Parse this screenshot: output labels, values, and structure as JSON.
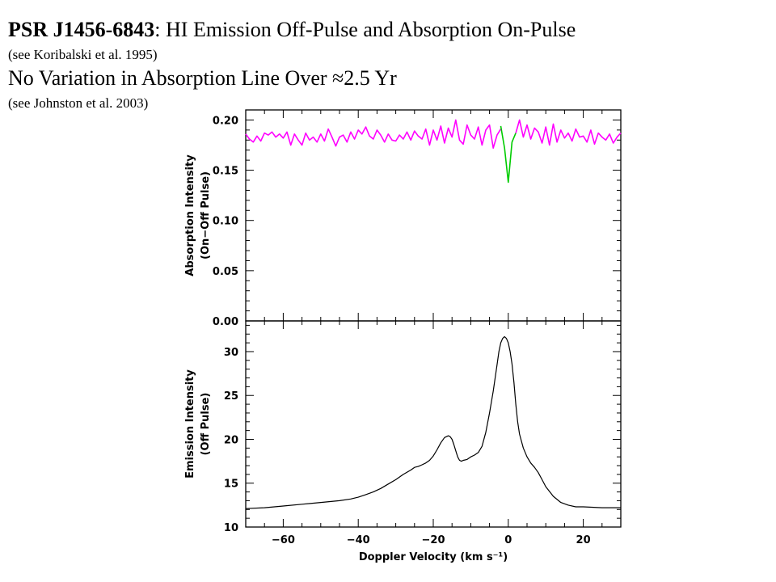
{
  "header": {
    "source": "PSR J1456-6843",
    "title_rest": ": HI Emission Off-Pulse and Absorption On-Pulse",
    "citation1": "(see Koribalski et al. 1995)",
    "subtitle": "No Variation in Absorption Line Over ≈2.5 Yr",
    "citation2": "(see Johnston et al. 2003)"
  },
  "chart_data": [
    {
      "type": "line",
      "panel": "top",
      "ylabel_line1": "Absorption Intensity",
      "ylabel_line2": "(On−Off Pulse)",
      "xlim": [
        -70,
        30
      ],
      "ylim": [
        0,
        0.21
      ],
      "yticks": [
        "0.00",
        "0.05",
        "0.10",
        "0.15",
        "0.20"
      ],
      "grid": false,
      "colors": {
        "magenta": "#ff00ff",
        "green": "#00cc00"
      },
      "series": [
        {
          "color": "magenta",
          "x": [
            -70,
            -69,
            -68,
            -67,
            -66,
            -65,
            -64,
            -63,
            -62,
            -61,
            -60,
            -59,
            -58,
            -57,
            -56,
            -55,
            -54,
            -53,
            -52,
            -51,
            -50,
            -49,
            -48,
            -47,
            -46,
            -45,
            -44,
            -43,
            -42,
            -41,
            -40,
            -39,
            -38,
            -37,
            -36,
            -35,
            -34,
            -33,
            -32,
            -31,
            -30,
            -29,
            -28,
            -27,
            -26,
            -25,
            -24,
            -23,
            -22,
            -21,
            -20,
            -19,
            -18,
            -17,
            -16,
            -15,
            -14,
            -13,
            -12,
            -11,
            -10,
            -9,
            -8,
            -7,
            -6,
            -5,
            -4,
            -3,
            -2
          ],
          "y": [
            0.186,
            0.181,
            0.178,
            0.184,
            0.179,
            0.187,
            0.185,
            0.188,
            0.183,
            0.186,
            0.182,
            0.188,
            0.175,
            0.186,
            0.18,
            0.175,
            0.187,
            0.18,
            0.183,
            0.178,
            0.186,
            0.179,
            0.191,
            0.183,
            0.174,
            0.183,
            0.185,
            0.178,
            0.188,
            0.181,
            0.19,
            0.186,
            0.193,
            0.184,
            0.181,
            0.19,
            0.185,
            0.178,
            0.186,
            0.18,
            0.179,
            0.185,
            0.181,
            0.188,
            0.18,
            0.189,
            0.184,
            0.181,
            0.191,
            0.175,
            0.19,
            0.18,
            0.194,
            0.177,
            0.192,
            0.183,
            0.2,
            0.18,
            0.176,
            0.195,
            0.185,
            0.181,
            0.193,
            0.175,
            0.19,
            0.195,
            0.172,
            0.185,
            0.191
          ]
        },
        {
          "color": "green",
          "x": [
            -2,
            -1,
            0,
            1,
            2
          ],
          "y": [
            0.194,
            0.172,
            0.138,
            0.178,
            0.187
          ]
        },
        {
          "color": "magenta",
          "x": [
            2,
            3,
            4,
            5,
            6,
            7,
            8,
            9,
            10,
            11,
            12,
            13,
            14,
            15,
            16,
            17,
            18,
            19,
            20,
            21,
            22,
            23,
            24,
            25,
            26,
            27,
            28,
            29,
            30
          ],
          "y": [
            0.187,
            0.2,
            0.183,
            0.195,
            0.181,
            0.192,
            0.188,
            0.177,
            0.193,
            0.175,
            0.196,
            0.178,
            0.19,
            0.182,
            0.187,
            0.179,
            0.191,
            0.183,
            0.184,
            0.178,
            0.19,
            0.176,
            0.187,
            0.183,
            0.18,
            0.186,
            0.177,
            0.183,
            0.187
          ]
        }
      ]
    },
    {
      "type": "line",
      "panel": "bottom",
      "xlabel": "Doppler Velocity (km s⁻¹)",
      "ylabel_line1": "Emission Intensity",
      "ylabel_line2": "(Off Pulse)",
      "xlim": [
        -70,
        30
      ],
      "ylim": [
        10,
        33.5
      ],
      "yticks": [
        "10",
        "15",
        "20",
        "25",
        "30"
      ],
      "xticks": [
        "−60",
        "−40",
        "−20",
        "0",
        "20"
      ],
      "grid": false,
      "colors": {
        "black": "#000000"
      },
      "series": [
        {
          "color": "black",
          "x": [
            -70,
            -65,
            -60,
            -55,
            -50,
            -45,
            -42,
            -40,
            -38,
            -36,
            -34,
            -32,
            -30,
            -28,
            -26,
            -25,
            -24,
            -23,
            -22,
            -21,
            -20,
            -19,
            -18,
            -17,
            -16,
            -15.5,
            -15,
            -14.5,
            -14,
            -13.5,
            -13,
            -12.5,
            -12,
            -11,
            -10,
            -9,
            -8,
            -7,
            -6,
            -5,
            -4,
            -3,
            -2.5,
            -2,
            -1.5,
            -1,
            -0.5,
            0,
            0.5,
            1,
            1.5,
            2,
            2.5,
            3,
            4,
            5,
            6,
            7,
            8,
            9,
            10,
            12,
            14,
            16,
            18,
            20,
            25,
            30
          ],
          "y": [
            12.1,
            12.2,
            12.4,
            12.6,
            12.8,
            13.0,
            13.2,
            13.4,
            13.7,
            14.0,
            14.4,
            14.9,
            15.4,
            16.0,
            16.5,
            16.8,
            16.9,
            17.1,
            17.3,
            17.6,
            18.1,
            18.8,
            19.6,
            20.2,
            20.4,
            20.3,
            20.0,
            19.4,
            18.7,
            18.0,
            17.6,
            17.5,
            17.6,
            17.7,
            18.0,
            18.2,
            18.5,
            19.2,
            20.8,
            23.0,
            25.5,
            28.5,
            30.0,
            31.0,
            31.5,
            31.7,
            31.5,
            31.0,
            30.0,
            28.6,
            26.5,
            24.0,
            22.0,
            20.6,
            19.0,
            18.0,
            17.3,
            16.8,
            16.2,
            15.4,
            14.6,
            13.5,
            12.8,
            12.5,
            12.3,
            12.3,
            12.2,
            12.2
          ]
        }
      ]
    }
  ]
}
